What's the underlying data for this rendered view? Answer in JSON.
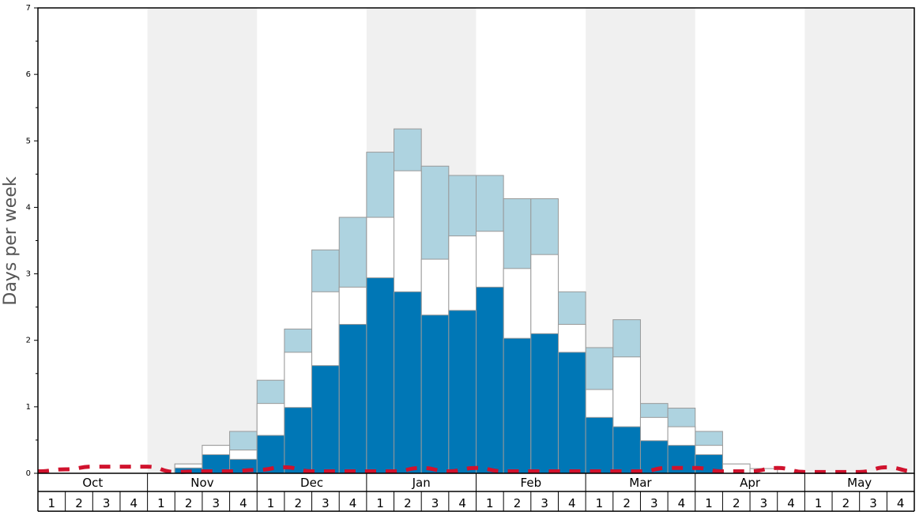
{
  "chart_data": {
    "type": "bar",
    "ylabel": "Days per week",
    "ylim": [
      0,
      7
    ],
    "y_ticks": [
      "0",
      "1",
      "2",
      "3",
      "4",
      "5",
      "6",
      "7"
    ],
    "months": [
      "Oct",
      "Nov",
      "Dec",
      "Jan",
      "Feb",
      "Mar",
      "Apr",
      "May"
    ],
    "week_labels": [
      "1",
      "2",
      "3",
      "4"
    ],
    "grid": false,
    "colors": {
      "dark_blue": "#0077b6",
      "white": "#ffffff",
      "light_blue": "#aed3e0",
      "band_grey": "#f0f0f0",
      "dashed_line": "#d0122d"
    },
    "series": [
      {
        "values": [
          0,
          0,
          0,
          0,
          0,
          0.08,
          0.28,
          0.21,
          0.57,
          0.99,
          1.62,
          2.24,
          2.94,
          2.73,
          2.38,
          2.45,
          2.8,
          2.03,
          2.1,
          1.82,
          0.84,
          0.7,
          0.49,
          0.42,
          0.28,
          0,
          0,
          0,
          0,
          0,
          0,
          0
        ]
      },
      {
        "values": [
          0,
          0,
          0,
          0,
          0,
          0.14,
          0.42,
          0.35,
          1.05,
          1.82,
          2.73,
          2.8,
          3.85,
          4.55,
          3.22,
          3.57,
          3.64,
          3.08,
          3.29,
          2.24,
          1.26,
          1.75,
          0.84,
          0.7,
          0.42,
          0.14,
          0.07,
          0,
          0,
          0,
          0,
          0
        ]
      },
      {
        "values": [
          0,
          0,
          0,
          0,
          0,
          0.14,
          0.42,
          0.63,
          1.4,
          2.17,
          3.36,
          3.85,
          4.83,
          5.18,
          4.62,
          4.48,
          4.48,
          4.13,
          4.13,
          2.73,
          1.89,
          2.31,
          1.05,
          0.98,
          0.63,
          0.14,
          0.07,
          0,
          0,
          0,
          0,
          0
        ]
      }
    ],
    "dashed_line_values": [
      0.03,
      0.06,
      0.1,
      0.1,
      0.1,
      0.02,
      0.03,
      0.03,
      0.05,
      0.09,
      0.03,
      0.03,
      0.03,
      0.03,
      0.08,
      0.03,
      0.08,
      0.03,
      0.03,
      0.03,
      0.03,
      0.03,
      0.03,
      0.08,
      0.08,
      0.03,
      0.03,
      0.08,
      0.02,
      0.02,
      0.02,
      0.09,
      0.03
    ]
  }
}
